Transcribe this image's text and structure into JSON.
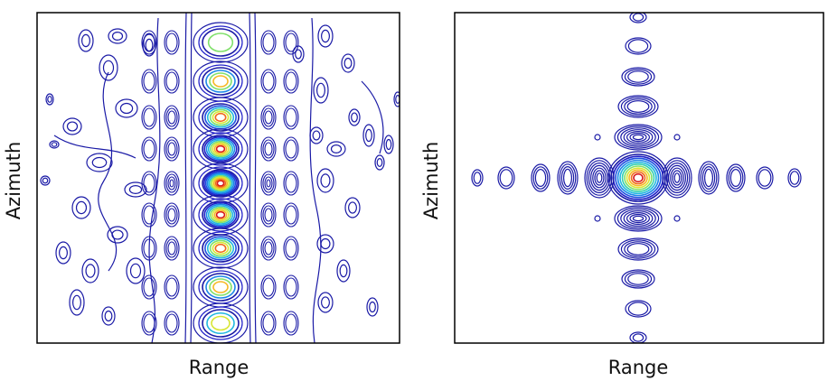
{
  "chart_data": [
    {
      "type": "contour",
      "title": "",
      "xlabel": "Range",
      "ylabel": "Azimuth",
      "grid": false,
      "colormap": "jet",
      "line_color_outer": "#1a1aa6",
      "description_kind": "smeared point-target response along azimuth",
      "peak_count": 9
    },
    {
      "type": "contour",
      "title": "",
      "xlabel": "Range",
      "ylabel": "Azimuth",
      "grid": false,
      "colormap": "jet",
      "line_color_outer": "#1a1aa6",
      "description_kind": "focused point-target response with sinc sidelobes",
      "peak_count": 1
    }
  ]
}
